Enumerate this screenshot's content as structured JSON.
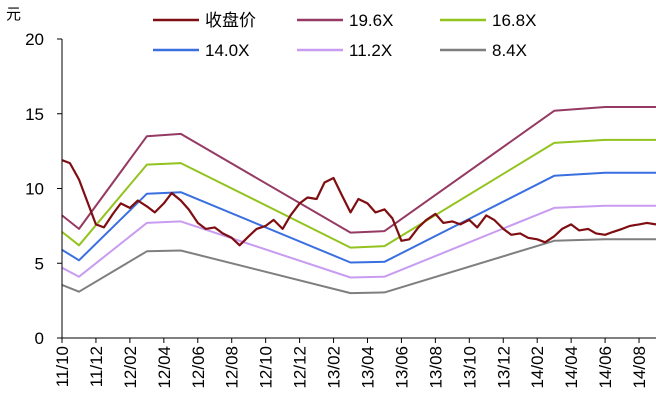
{
  "chart_data": {
    "type": "line",
    "y_unit": "元",
    "ylim": [
      0,
      20
    ],
    "y_ticks": [
      "0",
      "5",
      "10",
      "15",
      "20"
    ],
    "x_ticks": [
      "11/10",
      "11/12",
      "12/02",
      "12/04",
      "12/06",
      "12/08",
      "12/10",
      "12/12",
      "13/02",
      "13/04",
      "13/06",
      "13/08",
      "13/10",
      "13/12",
      "14/02",
      "14/04",
      "14/06",
      "14/08"
    ],
    "x_range": [
      "2011-10",
      "2014-09"
    ],
    "grid": false,
    "legend_position": "top",
    "series": [
      {
        "name": "收盘价",
        "color": "#7f0e12",
        "points": [
          [
            "2011-10",
            11.9
          ],
          [
            "2011-10-15",
            11.7
          ],
          [
            "2011-11",
            10.6
          ],
          [
            "2011-11-15",
            9.2
          ],
          [
            "2011-12",
            7.6
          ],
          [
            "2011-12-15",
            7.4
          ],
          [
            "2012-01",
            8.3
          ],
          [
            "2012-01-15",
            9.0
          ],
          [
            "2012-02",
            8.7
          ],
          [
            "2012-02-15",
            9.2
          ],
          [
            "2012-03",
            8.8
          ],
          [
            "2012-03-15",
            8.4
          ],
          [
            "2012-04",
            9.0
          ],
          [
            "2012-04-15",
            9.7
          ],
          [
            "2012-05",
            9.2
          ],
          [
            "2012-05-15",
            8.6
          ],
          [
            "2012-06",
            7.7
          ],
          [
            "2012-06-15",
            7.3
          ],
          [
            "2012-07",
            7.4
          ],
          [
            "2012-07-15",
            7.0
          ],
          [
            "2012-08",
            6.7
          ],
          [
            "2012-08-15",
            6.2
          ],
          [
            "2012-09",
            6.8
          ],
          [
            "2012-09-15",
            7.3
          ],
          [
            "2012-10",
            7.5
          ],
          [
            "2012-10-15",
            7.9
          ],
          [
            "2012-11",
            7.3
          ],
          [
            "2012-11-15",
            8.2
          ],
          [
            "2012-12",
            9.0
          ],
          [
            "2012-12-15",
            9.4
          ],
          [
            "2013-01",
            9.3
          ],
          [
            "2013-01-15",
            10.4
          ],
          [
            "2013-02",
            10.7
          ],
          [
            "2013-02-15",
            9.6
          ],
          [
            "2013-03",
            8.4
          ],
          [
            "2013-03-15",
            9.3
          ],
          [
            "2013-04",
            9.0
          ],
          [
            "2013-04-15",
            8.4
          ],
          [
            "2013-05",
            8.6
          ],
          [
            "2013-05-15",
            8.0
          ],
          [
            "2013-06",
            6.5
          ],
          [
            "2013-06-15",
            6.6
          ],
          [
            "2013-07",
            7.4
          ],
          [
            "2013-07-15",
            7.9
          ],
          [
            "2013-08",
            8.3
          ],
          [
            "2013-08-15",
            7.7
          ],
          [
            "2013-09",
            7.8
          ],
          [
            "2013-09-15",
            7.6
          ],
          [
            "2013-10",
            7.9
          ],
          [
            "2013-10-15",
            7.4
          ],
          [
            "2013-11",
            8.2
          ],
          [
            "2013-11-15",
            7.9
          ],
          [
            "2013-12",
            7.3
          ],
          [
            "2013-12-15",
            6.9
          ],
          [
            "2014-01",
            7.0
          ],
          [
            "2014-01-15",
            6.7
          ],
          [
            "2014-02",
            6.6
          ],
          [
            "2014-02-15",
            6.4
          ],
          [
            "2014-03",
            6.8
          ],
          [
            "2014-03-15",
            7.3
          ],
          [
            "2014-04",
            7.6
          ],
          [
            "2014-04-15",
            7.2
          ],
          [
            "2014-05",
            7.3
          ],
          [
            "2014-05-15",
            7.0
          ],
          [
            "2014-06",
            6.9
          ],
          [
            "2014-06-15",
            7.1
          ],
          [
            "2014-07",
            7.3
          ],
          [
            "2014-07-15",
            7.5
          ],
          [
            "2014-08",
            7.6
          ],
          [
            "2014-08-15",
            7.7
          ],
          [
            "2014-09",
            7.6
          ]
        ]
      },
      {
        "name": "19.6X",
        "color": "#953a63",
        "points": [
          [
            "2011-10",
            8.2
          ],
          [
            "2011-11",
            7.3
          ],
          [
            "2012-03",
            13.5
          ],
          [
            "2012-05",
            13.65
          ],
          [
            "2013-03",
            7.05
          ],
          [
            "2013-05",
            7.15
          ],
          [
            "2014-03",
            15.2
          ],
          [
            "2014-06",
            15.45
          ],
          [
            "2014-09",
            15.45
          ]
        ]
      },
      {
        "name": "16.8X",
        "color": "#92c31e",
        "points": [
          [
            "2011-10",
            7.1
          ],
          [
            "2011-11",
            6.2
          ],
          [
            "2012-03",
            11.6
          ],
          [
            "2012-05",
            11.7
          ],
          [
            "2013-03",
            6.05
          ],
          [
            "2013-05",
            6.15
          ],
          [
            "2014-03",
            13.05
          ],
          [
            "2014-06",
            13.25
          ],
          [
            "2014-09",
            13.25
          ]
        ]
      },
      {
        "name": "14.0X",
        "color": "#3a6fe0",
        "points": [
          [
            "2011-10",
            5.9
          ],
          [
            "2011-11",
            5.2
          ],
          [
            "2012-03",
            9.65
          ],
          [
            "2012-05",
            9.75
          ],
          [
            "2013-03",
            5.05
          ],
          [
            "2013-05",
            5.1
          ],
          [
            "2014-03",
            10.85
          ],
          [
            "2014-06",
            11.05
          ],
          [
            "2014-09",
            11.05
          ]
        ]
      },
      {
        "name": "11.2X",
        "color": "#c89cf0",
        "points": [
          [
            "2011-10",
            4.7
          ],
          [
            "2011-11",
            4.1
          ],
          [
            "2012-03",
            7.7
          ],
          [
            "2012-05",
            7.8
          ],
          [
            "2013-03",
            4.05
          ],
          [
            "2013-05",
            4.1
          ],
          [
            "2014-03",
            8.7
          ],
          [
            "2014-06",
            8.85
          ],
          [
            "2014-09",
            8.85
          ]
        ]
      },
      {
        "name": "8.4X",
        "color": "#7f7f7f",
        "points": [
          [
            "2011-10",
            3.55
          ],
          [
            "2011-11",
            3.1
          ],
          [
            "2012-03",
            5.8
          ],
          [
            "2012-05",
            5.85
          ],
          [
            "2013-03",
            3.0
          ],
          [
            "2013-05",
            3.05
          ],
          [
            "2014-03",
            6.5
          ],
          [
            "2014-06",
            6.6
          ],
          [
            "2014-09",
            6.6
          ]
        ]
      }
    ]
  }
}
